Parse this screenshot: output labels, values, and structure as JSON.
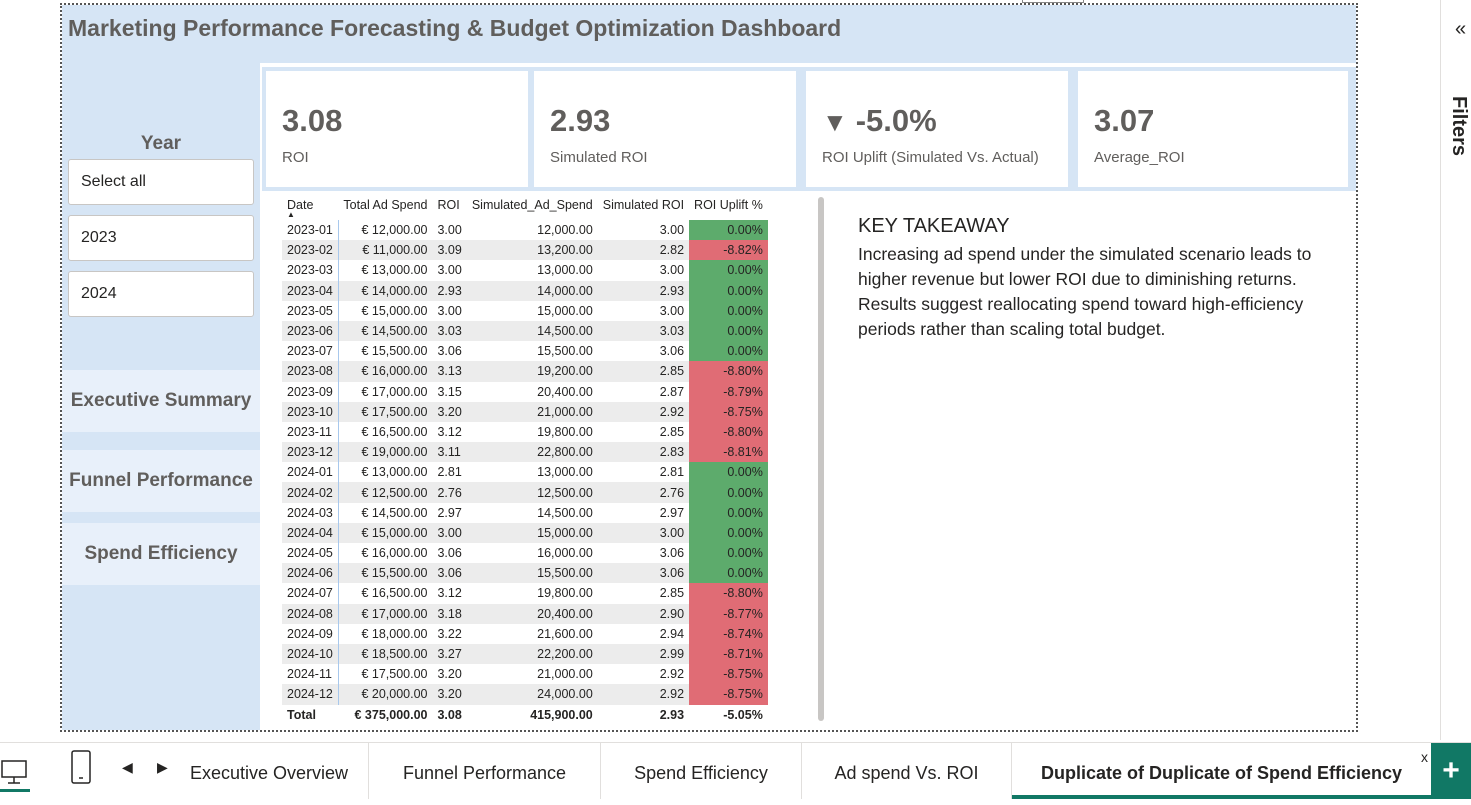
{
  "dashboard": {
    "title": "Marketing Performance Forecasting & Budget Optimization Dashboard"
  },
  "slicer": {
    "label": "Year",
    "items": [
      "Select all",
      "2023",
      "2024"
    ]
  },
  "nav": {
    "items": [
      "Executive Summary",
      "Funnel Performance",
      "Spend Efficiency"
    ]
  },
  "kpis": [
    {
      "value": "3.08",
      "label": "ROI",
      "arrow": ""
    },
    {
      "value": "2.93",
      "label": "Simulated ROI",
      "arrow": ""
    },
    {
      "value": "-5.0%",
      "label": "ROI Uplift (Simulated Vs. Actual)",
      "arrow": "▼"
    },
    {
      "value": "3.07",
      "label": "Average_ROI",
      "arrow": ""
    }
  ],
  "table": {
    "headers": [
      "Date",
      "Total Ad Spend",
      "ROI",
      "Simulated_Ad_Spend",
      "Simulated ROI",
      "ROI Uplift %"
    ],
    "rows": [
      [
        "2023-01",
        "€ 12,000.00",
        "3.00",
        "12,000.00",
        "3.00",
        "0.00%"
      ],
      [
        "2023-02",
        "€ 11,000.00",
        "3.09",
        "13,200.00",
        "2.82",
        "-8.82%"
      ],
      [
        "2023-03",
        "€ 13,000.00",
        "3.00",
        "13,000.00",
        "3.00",
        "0.00%"
      ],
      [
        "2023-04",
        "€ 14,000.00",
        "2.93",
        "14,000.00",
        "2.93",
        "0.00%"
      ],
      [
        "2023-05",
        "€ 15,000.00",
        "3.00",
        "15,000.00",
        "3.00",
        "0.00%"
      ],
      [
        "2023-06",
        "€ 14,500.00",
        "3.03",
        "14,500.00",
        "3.03",
        "0.00%"
      ],
      [
        "2023-07",
        "€ 15,500.00",
        "3.06",
        "15,500.00",
        "3.06",
        "0.00%"
      ],
      [
        "2023-08",
        "€ 16,000.00",
        "3.13",
        "19,200.00",
        "2.85",
        "-8.80%"
      ],
      [
        "2023-09",
        "€ 17,000.00",
        "3.15",
        "20,400.00",
        "2.87",
        "-8.79%"
      ],
      [
        "2023-10",
        "€ 17,500.00",
        "3.20",
        "21,000.00",
        "2.92",
        "-8.75%"
      ],
      [
        "2023-11",
        "€ 16,500.00",
        "3.12",
        "19,800.00",
        "2.85",
        "-8.80%"
      ],
      [
        "2023-12",
        "€ 19,000.00",
        "3.11",
        "22,800.00",
        "2.83",
        "-8.81%"
      ],
      [
        "2024-01",
        "€ 13,000.00",
        "2.81",
        "13,000.00",
        "2.81",
        "0.00%"
      ],
      [
        "2024-02",
        "€ 12,500.00",
        "2.76",
        "12,500.00",
        "2.76",
        "0.00%"
      ],
      [
        "2024-03",
        "€ 14,500.00",
        "2.97",
        "14,500.00",
        "2.97",
        "0.00%"
      ],
      [
        "2024-04",
        "€ 15,000.00",
        "3.00",
        "15,000.00",
        "3.00",
        "0.00%"
      ],
      [
        "2024-05",
        "€ 16,000.00",
        "3.06",
        "16,000.00",
        "3.06",
        "0.00%"
      ],
      [
        "2024-06",
        "€ 15,500.00",
        "3.06",
        "15,500.00",
        "3.06",
        "0.00%"
      ],
      [
        "2024-07",
        "€ 16,500.00",
        "3.12",
        "19,800.00",
        "2.85",
        "-8.80%"
      ],
      [
        "2024-08",
        "€ 17,000.00",
        "3.18",
        "20,400.00",
        "2.90",
        "-8.77%"
      ],
      [
        "2024-09",
        "€ 18,000.00",
        "3.22",
        "21,600.00",
        "2.94",
        "-8.74%"
      ],
      [
        "2024-10",
        "€ 18,500.00",
        "3.27",
        "22,200.00",
        "2.99",
        "-8.71%"
      ],
      [
        "2024-11",
        "€ 17,500.00",
        "3.20",
        "21,000.00",
        "2.92",
        "-8.75%"
      ],
      [
        "2024-12",
        "€ 20,000.00",
        "3.20",
        "24,000.00",
        "2.92",
        "-8.75%"
      ]
    ],
    "total": [
      "Total",
      "€ 375,000.00",
      "3.08",
      "415,900.00",
      "2.93",
      "-5.05%"
    ],
    "colors": {
      "neutral": "#5dab6c",
      "negative": "#e06c75"
    }
  },
  "takeaway": {
    "title": "KEY TAKEAWAY",
    "body": "Increasing ad spend under the simulated scenario leads to higher revenue but lower ROI due to diminishing returns. Results suggest reallocating spend toward high-efficiency periods rather than scaling total budget."
  },
  "filters": {
    "label": "Filters",
    "chevron": "«"
  },
  "tabs": {
    "items": [
      "Executive Overview",
      "Funnel Performance",
      "Spend Efficiency",
      "Ad spend Vs. ROI",
      "Duplicate of Duplicate of Spend Efficiency"
    ],
    "active": "Duplicate of Duplicate of Spend Efficiency",
    "close": "x",
    "add": "+"
  },
  "theme": {
    "accent": "#117865",
    "panel_bg": "#d6e5f5"
  }
}
